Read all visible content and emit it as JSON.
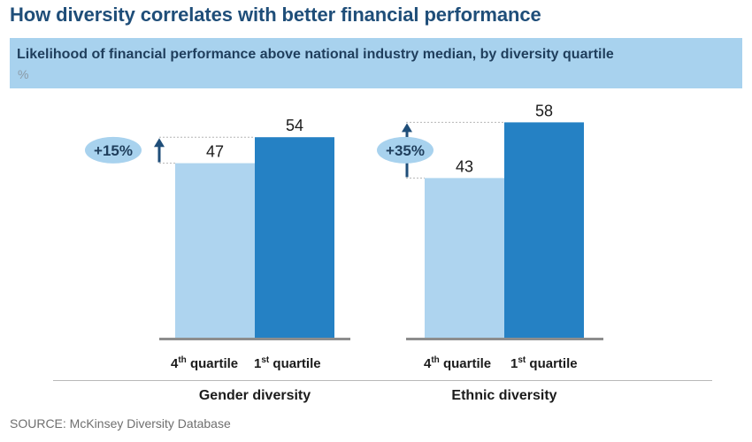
{
  "title": "How diversity correlates with better financial performance",
  "subtitle": "Likelihood of financial performance above national industry median, by diversity quartile",
  "unit": "%",
  "source": "SOURCE: McKinsey Diversity Database",
  "colors": {
    "title": "#1f4e79",
    "band": "#a8d2ee",
    "light_bar": "#aed4ef",
    "dark_bar": "#2581c4",
    "arrow": "#1f4e79",
    "bubble": "#a8d2ee"
  },
  "chart_data": [
    {
      "type": "bar",
      "group_label": "Gender diversity",
      "categories": [
        "4th quartile",
        "1st quartile"
      ],
      "values": [
        47,
        54
      ],
      "annotation": "+15%",
      "ylim": [
        0,
        60
      ]
    },
    {
      "type": "bar",
      "group_label": "Ethnic diversity",
      "categories": [
        "4th quartile",
        "1st quartile"
      ],
      "values": [
        43,
        58
      ],
      "annotation": "+35%",
      "ylim": [
        0,
        60
      ]
    }
  ]
}
